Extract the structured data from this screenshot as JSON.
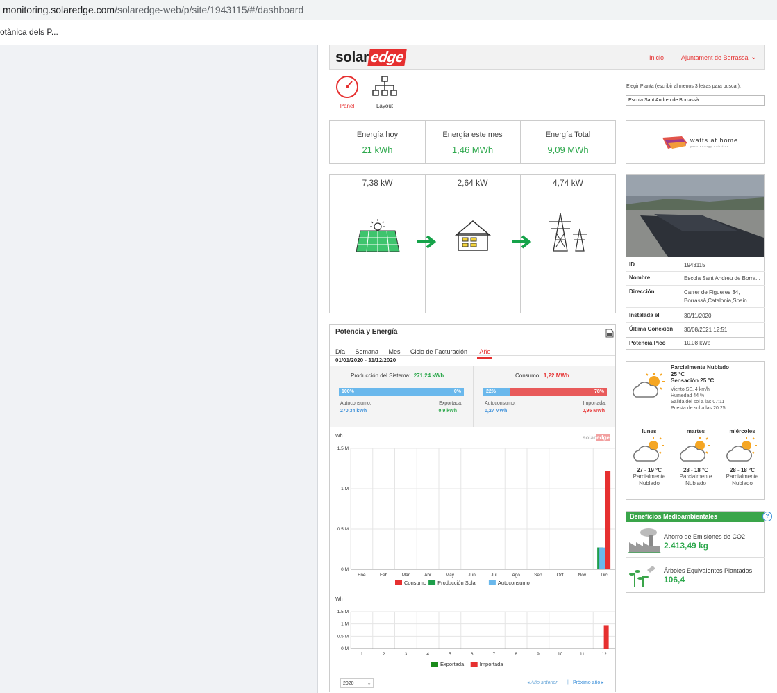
{
  "browser": {
    "url_host": "monitoring.solaredge.com",
    "url_path": "/solaredge-web/p/site/1943115/#/dashboard",
    "bookmark": "otànica dels P..."
  },
  "header": {
    "logo_solar": "solar",
    "logo_edge": "edge",
    "nav_home": "Inicio",
    "nav_account": "Ajuntament de Borrassà"
  },
  "toolbar": {
    "panel_label": "Panel",
    "layout_label": "Layout"
  },
  "site_picker": {
    "label": "Elegir Planta (escribir al menos 3 letras para buscar):",
    "value": "Escola Sant Andreu de Borrassà"
  },
  "energy": {
    "today_label": "Energía hoy",
    "today_value": "21 kWh",
    "month_label": "Energía este mes",
    "month_value": "1,46 MWh",
    "total_label": "Energía Total",
    "total_value": "9,09 MWh"
  },
  "brand_logo": {
    "name": "watts at home",
    "tagline": "your energy solution"
  },
  "flow": {
    "pv_power": "7,38 kW",
    "home_power": "2,64 kW",
    "grid_power": "4,74 kW"
  },
  "site_info": [
    {
      "k": "ID",
      "v": "1943115"
    },
    {
      "k": "Nombre",
      "v": "Escola Sant Andreu de Borra..."
    },
    {
      "k": "Dirección",
      "v": "Carrer de Figueres 34, Borrassà,Catalonia,Spain"
    },
    {
      "k": "Instalada el",
      "v": "30/11/2020"
    },
    {
      "k": "Última Conexión",
      "v": "30/08/2021 12:51"
    },
    {
      "k": "Potencia Pico",
      "v": "10,08 kWp"
    }
  ],
  "power_energy": {
    "title": "Potencia y Energía",
    "tabs": [
      "Día",
      "Semana",
      "Mes",
      "Ciclo de Facturación",
      "Año"
    ],
    "active_tab": "Año",
    "range": "01/01/2020 - 31/12/2020",
    "production_label": "Producción del Sistema:",
    "production_value": "271,24 kWh",
    "consumption_label": "Consumo:",
    "consumption_value": "1,22 MWh",
    "prod_bar_left": "100%",
    "prod_bar_right": "0%",
    "cons_bar_left": "22%",
    "cons_bar_right": "78%",
    "prod_bar_fraction": 1.0,
    "cons_bar_fraction": 0.22,
    "self_label": "Autoconsumo:",
    "self_value": "270,34 kWh",
    "export_label": "Exportada:",
    "export_value": "0,9 kWh",
    "self2_label": "Autoconsumo:",
    "self2_value": "0,27 MWh",
    "import_label": "Importada:",
    "import_value": "0,95 MWh",
    "year_select": "2020",
    "prev_year": "Año anterior",
    "next_year": "Próximo año",
    "separator": "|",
    "chart_watermark_solar": "solar",
    "chart_watermark_edge": "edge"
  },
  "chart_data": [
    {
      "type": "bar",
      "ylabel": "Wh",
      "yticks": [
        "1.5 M",
        "1 M",
        "0.5 M",
        "0 M"
      ],
      "ylim": [
        0,
        1500000
      ],
      "categories": [
        "Ene",
        "Feb",
        "Mar",
        "Abr",
        "May",
        "Jun",
        "Jul",
        "Ago",
        "Sep",
        "Oct",
        "Nov",
        "Dic"
      ],
      "series": [
        {
          "name": "Consumo",
          "color": "#e63030",
          "values": [
            0,
            0,
            0,
            0,
            0,
            0,
            0,
            0,
            0,
            0,
            0,
            1220000
          ]
        },
        {
          "name": "Producción Solar",
          "color": "#1e9e4a",
          "values": [
            0,
            0,
            0,
            0,
            0,
            0,
            0,
            0,
            0,
            0,
            0,
            271240
          ]
        },
        {
          "name": "Autoconsumo",
          "color": "#6ab8ec",
          "values": [
            0,
            0,
            0,
            0,
            0,
            0,
            0,
            0,
            0,
            0,
            0,
            270340
          ]
        }
      ],
      "grid": true,
      "legend": "bottom"
    },
    {
      "type": "bar",
      "ylabel": "Wh",
      "yticks": [
        "1.5 M",
        "1 M",
        "0.5 M",
        "0 M"
      ],
      "ylim": [
        0,
        1500000
      ],
      "categories": [
        "1",
        "2",
        "3",
        "4",
        "5",
        "6",
        "7",
        "8",
        "9",
        "10",
        "11",
        "12"
      ],
      "series": [
        {
          "name": "Exportada",
          "color": "#1a8a1a",
          "values": [
            0,
            0,
            0,
            0,
            0,
            0,
            0,
            0,
            0,
            0,
            0,
            900
          ]
        },
        {
          "name": "Importada",
          "color": "#e63030",
          "values": [
            0,
            0,
            0,
            0,
            0,
            0,
            0,
            0,
            0,
            0,
            0,
            950000
          ]
        }
      ],
      "grid": true,
      "legend": "bottom"
    }
  ],
  "weather": {
    "current_desc": "Parcialmente Nublado",
    "current_temp": "25 °C",
    "feels": "Sensación 25 °C",
    "wind": "Viento SE, 4 km/h",
    "humidity": "Humedad 44 %",
    "sunrise": "Salida del sol a las 07:11",
    "sunset": "Puesta de sol a las 20:25",
    "forecast": [
      {
        "day": "lunes",
        "temp": "27 - 19 °C",
        "desc1": "Parcialmente",
        "desc2": "Nublado"
      },
      {
        "day": "martes",
        "temp": "28 - 18 °C",
        "desc1": "Parcialmente",
        "desc2": "Nublado"
      },
      {
        "day": "miércoles",
        "temp": "28 - 18 °C",
        "desc1": "Parcialmente",
        "desc2": "Nublado"
      }
    ]
  },
  "benefits": {
    "title": "Beneficios Medioambientales",
    "help": "?",
    "co2_label": "Ahorro de Emisiones de CO2",
    "co2_value": "2.413,49 kg",
    "trees_label": "Árboles Equivalentes Plantados",
    "trees_value": "106,4"
  },
  "colors": {
    "accent": "#e63030",
    "green": "#2ea84d",
    "blue": "#6ab8ec",
    "benefits_header": "#3aa54a"
  }
}
